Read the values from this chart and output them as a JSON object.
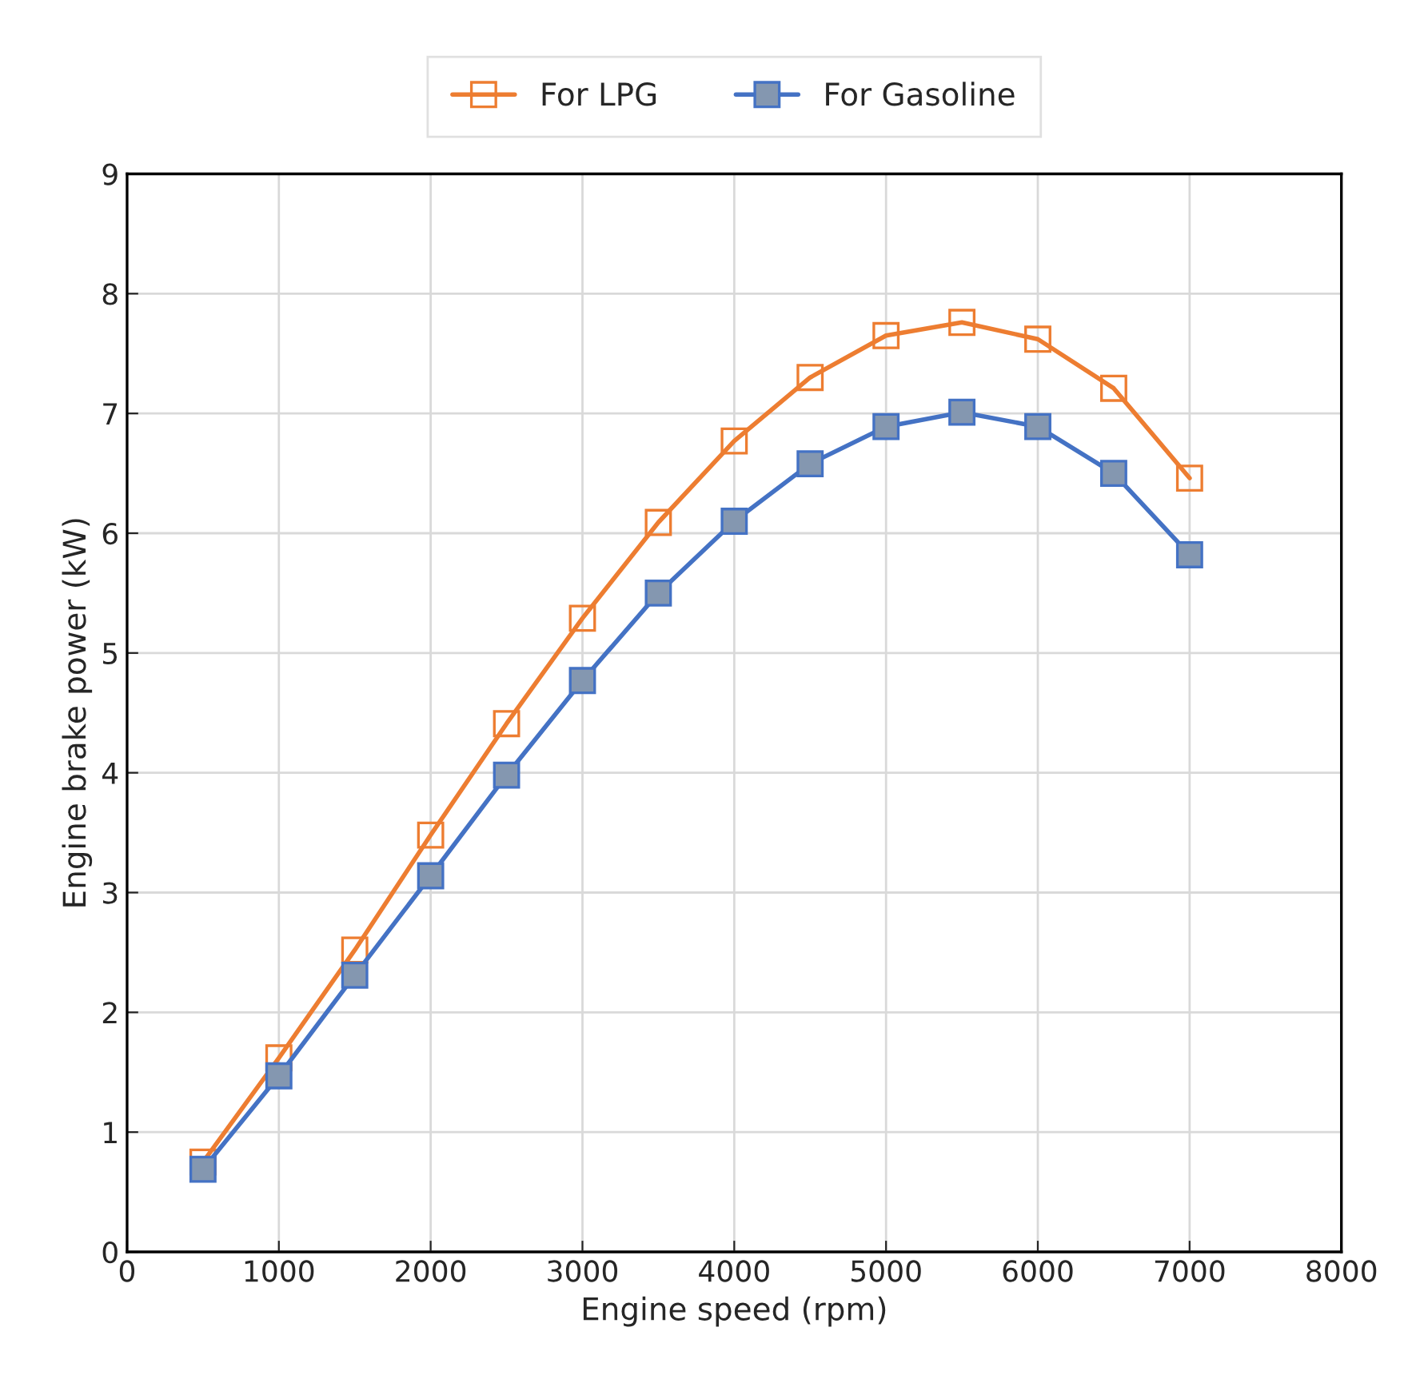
{
  "chart_data": {
    "type": "line",
    "xlabel": "Engine speed (rpm)",
    "ylabel": "Engine brake power (kW)",
    "x": [
      500,
      1000,
      1500,
      2000,
      2500,
      3000,
      3500,
      4000,
      4500,
      5000,
      5500,
      6000,
      6500,
      7000
    ],
    "series": [
      {
        "name": "For LPG",
        "color": "#ed7d31",
        "values": [
          0.75,
          1.62,
          2.52,
          3.48,
          4.41,
          5.29,
          6.09,
          6.77,
          7.3,
          7.65,
          7.76,
          7.62,
          7.21,
          6.46
        ]
      },
      {
        "name": "For Gasoline",
        "color": "#4472c4",
        "values": [
          0.69,
          1.47,
          2.31,
          3.14,
          3.98,
          4.77,
          5.5,
          6.1,
          6.58,
          6.89,
          7.01,
          6.89,
          6.5,
          5.82
        ]
      }
    ],
    "xlim": [
      0,
      8000
    ],
    "xticks": [
      0,
      1000,
      2000,
      3000,
      4000,
      5000,
      6000,
      7000,
      8000
    ],
    "ylim": [
      0,
      9
    ],
    "yticks": [
      0,
      1,
      2,
      3,
      4,
      5,
      6,
      7,
      8,
      9
    ],
    "grid": true,
    "legend": "top",
    "marker": "square",
    "line_style": "solid"
  }
}
